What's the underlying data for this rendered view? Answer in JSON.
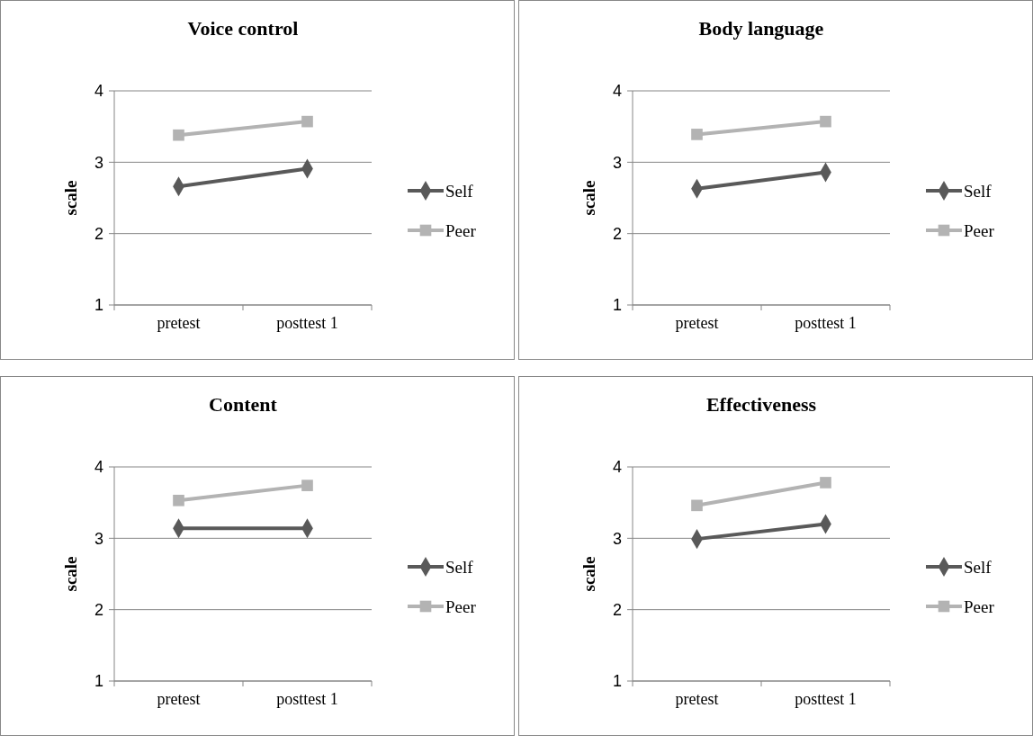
{
  "chart_data": [
    {
      "type": "line",
      "title": "Voice control",
      "ylabel": "scale",
      "categories": [
        "pretest",
        "posttest 1"
      ],
      "ylim": [
        1,
        4
      ],
      "yticks": [
        1,
        2,
        3,
        4
      ],
      "grid": "y",
      "legend": "right",
      "line_style": "solid",
      "series": [
        {
          "name": "Self",
          "color": "#595959",
          "marker": "diamond",
          "values": [
            2.66,
            2.91
          ]
        },
        {
          "name": "Peer",
          "color": "#b3b3b3",
          "marker": "square",
          "values": [
            3.38,
            3.57
          ]
        }
      ]
    },
    {
      "type": "line",
      "title": "Body language",
      "ylabel": "scale",
      "categories": [
        "pretest",
        "posttest 1"
      ],
      "ylim": [
        1,
        4
      ],
      "yticks": [
        1,
        2,
        3,
        4
      ],
      "grid": "y",
      "legend": "right",
      "line_style": "solid",
      "series": [
        {
          "name": "Self",
          "color": "#595959",
          "marker": "diamond",
          "values": [
            2.63,
            2.86
          ]
        },
        {
          "name": "Peer",
          "color": "#b3b3b3",
          "marker": "square",
          "values": [
            3.39,
            3.57
          ]
        }
      ]
    },
    {
      "type": "line",
      "title": "Content",
      "ylabel": "scale",
      "categories": [
        "pretest",
        "posttest 1"
      ],
      "ylim": [
        1,
        4
      ],
      "yticks": [
        1,
        2,
        3,
        4
      ],
      "grid": "y",
      "legend": "right",
      "line_style": "solid",
      "series": [
        {
          "name": "Self",
          "color": "#595959",
          "marker": "diamond",
          "values": [
            3.14,
            3.14
          ]
        },
        {
          "name": "Peer",
          "color": "#b3b3b3",
          "marker": "square",
          "values": [
            3.53,
            3.74
          ]
        }
      ]
    },
    {
      "type": "line",
      "title": "Effectiveness",
      "ylabel": "scale",
      "categories": [
        "pretest",
        "posttest 1"
      ],
      "ylim": [
        1,
        4
      ],
      "yticks": [
        1,
        2,
        3,
        4
      ],
      "grid": "y",
      "legend": "right",
      "line_style": "solid",
      "series": [
        {
          "name": "Self",
          "color": "#595959",
          "marker": "diamond",
          "values": [
            2.99,
            3.2
          ]
        },
        {
          "name": "Peer",
          "color": "#b3b3b3",
          "marker": "square",
          "values": [
            3.46,
            3.78
          ]
        }
      ]
    }
  ]
}
